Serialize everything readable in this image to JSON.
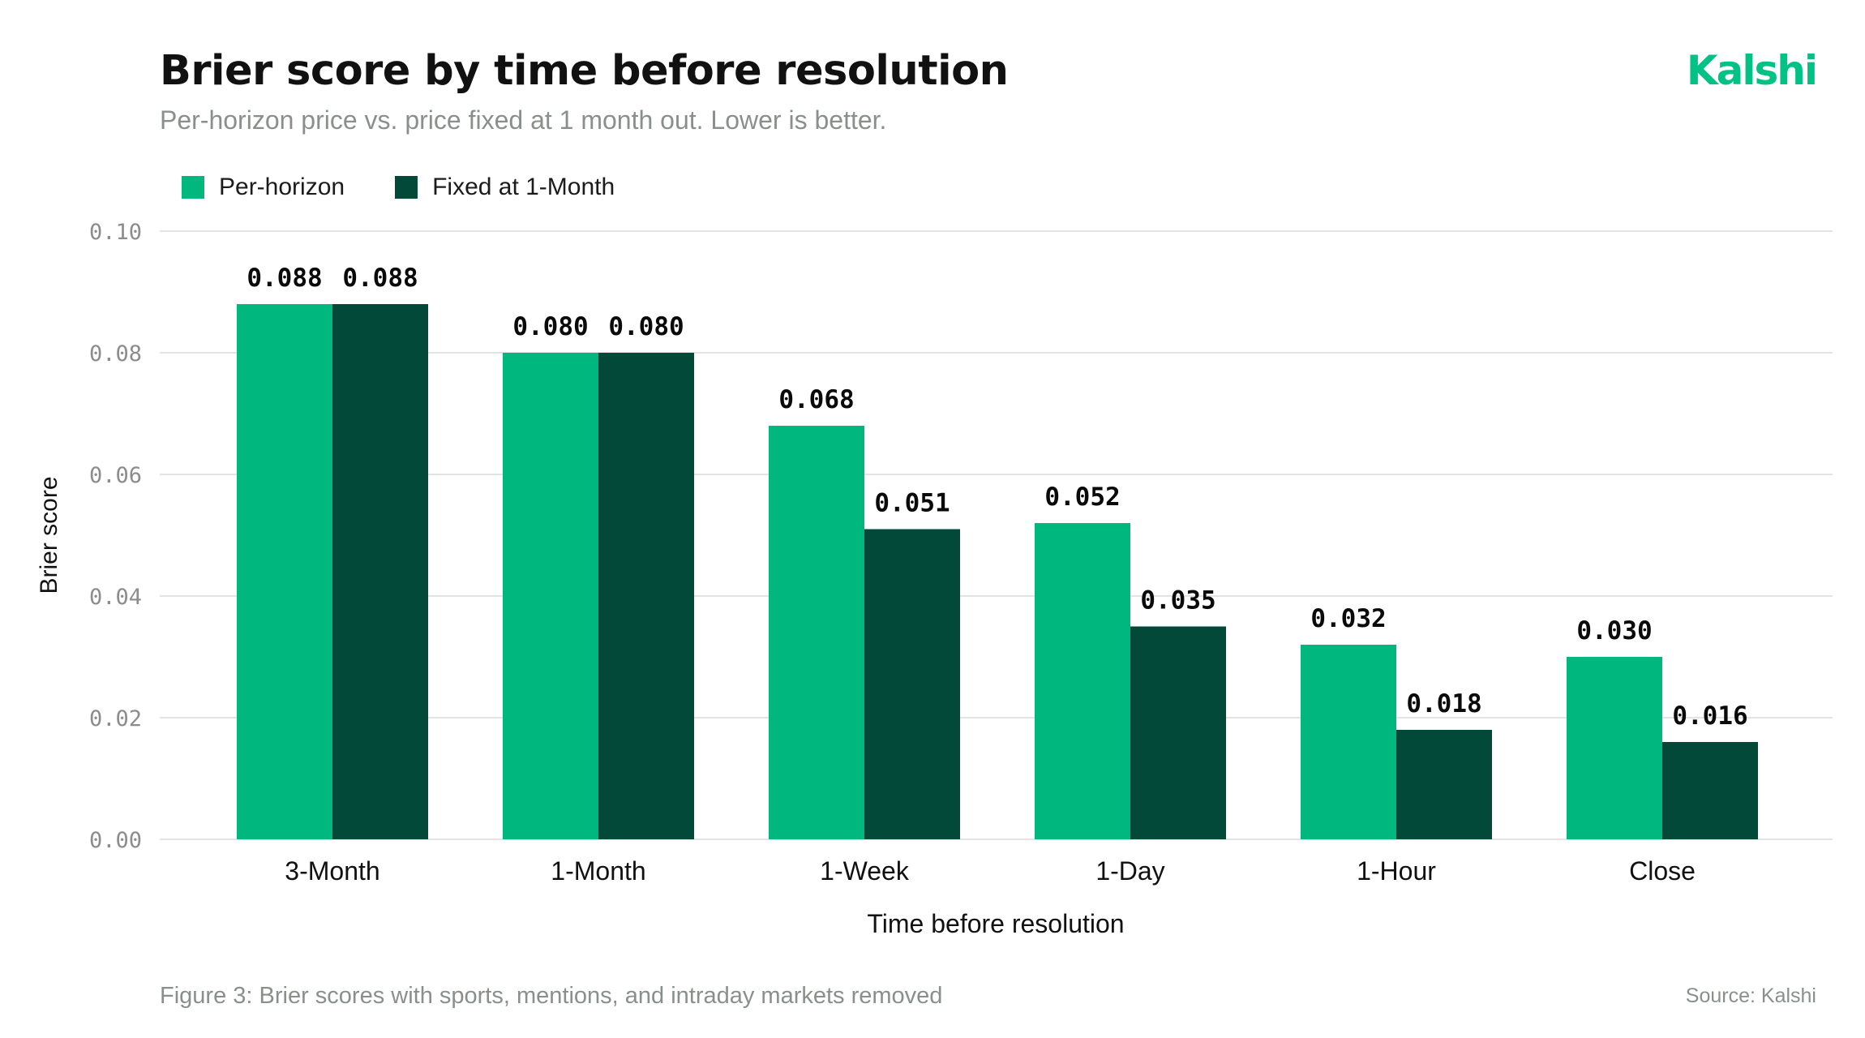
{
  "header": {
    "title": "Brier score by time before resolution",
    "subtitle": "Per-horizon price vs. price fixed at 1 month out. Lower is better.",
    "brand": "Kalshi"
  },
  "footer": {
    "caption": "Figure 3: Brier scores with sports, mentions, and intraday markets removed",
    "source": "Source: Kalshi"
  },
  "colors": {
    "per_horizon": "#00b87d",
    "fixed": "#02493a",
    "grid": "#e3e3e3",
    "tick": "#8c8c8c"
  },
  "chart_data": {
    "type": "bar",
    "categories": [
      "3-Month",
      "1-Month",
      "1-Week",
      "1-Day",
      "1-Hour",
      "Close"
    ],
    "series": [
      {
        "name": "Per-horizon",
        "values": [
          0.088,
          0.08,
          0.068,
          0.052,
          0.032,
          0.03
        ]
      },
      {
        "name": "Fixed at 1-Month",
        "values": [
          0.088,
          0.08,
          0.051,
          0.035,
          0.018,
          0.016
        ]
      }
    ],
    "value_labels": [
      [
        "0.088",
        "0.080",
        "0.068",
        "0.052",
        "0.032",
        "0.030"
      ],
      [
        "0.088",
        "0.080",
        "0.051",
        "0.035",
        "0.018",
        "0.016"
      ]
    ],
    "xlabel": "Time before resolution",
    "ylabel": "Brier score",
    "ylim": [
      0,
      0.1
    ],
    "yticks": [
      0.0,
      0.02,
      0.04,
      0.06,
      0.08,
      0.1
    ],
    "ytick_labels": [
      "0.00",
      "0.02",
      "0.04",
      "0.06",
      "0.08",
      "0.10"
    ],
    "grid": true,
    "legend_position": "top-left"
  }
}
